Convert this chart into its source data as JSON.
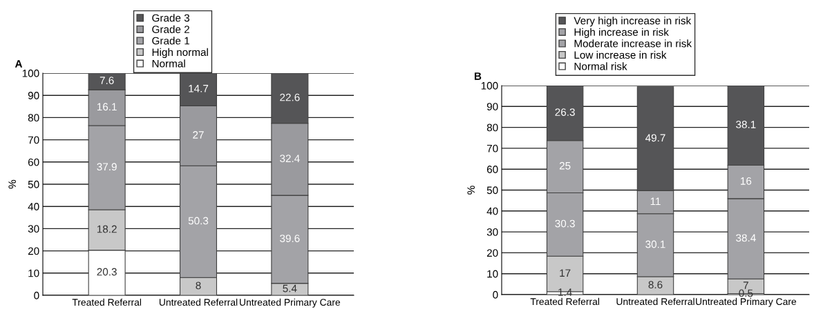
{
  "chart_data": [
    {
      "type": "bar",
      "stacked": true,
      "title": "A",
      "ylabel": "%",
      "categories": [
        "Treated Referral",
        "Untreated Referral",
        "Untreated Primary Care"
      ],
      "ylim": [
        0,
        100
      ],
      "yticks": [
        0,
        10,
        20,
        30,
        40,
        50,
        60,
        70,
        80,
        90,
        100
      ],
      "grid": "y",
      "legend": "top",
      "series": [
        {
          "name": "Normal",
          "color": "#ffffff",
          "values": [
            20.3,
            0,
            0
          ],
          "value_labels": [
            "20.3",
            null,
            null
          ]
        },
        {
          "name": "High normal",
          "color": "#c8c8c8",
          "values": [
            18.2,
            8,
            5.4
          ],
          "value_labels": [
            "18.2",
            "8",
            "5.4"
          ]
        },
        {
          "name": "Grade 1",
          "color": "#a3a3a7",
          "values": [
            37.9,
            50.3,
            39.6
          ],
          "value_labels": [
            "37.9",
            "50.3",
            "39.6"
          ]
        },
        {
          "name": "Grade 2",
          "color": "#9a9a9e",
          "values": [
            16.1,
            27,
            32.4
          ],
          "value_labels": [
            "16.1",
            "27",
            "32.4"
          ]
        },
        {
          "name": "Grade 3",
          "color": "#555557",
          "values": [
            7.6,
            14.7,
            22.6
          ],
          "value_labels": [
            "7.6",
            "14.7",
            "22.6"
          ]
        }
      ]
    },
    {
      "type": "bar",
      "stacked": true,
      "title": "B",
      "ylabel": "%",
      "categories": [
        "Treated Referral",
        "Untreated Referral",
        "Untreated Primary Care"
      ],
      "ylim": [
        0,
        100
      ],
      "yticks": [
        0,
        10,
        20,
        30,
        40,
        50,
        60,
        70,
        80,
        90,
        100
      ],
      "grid": "y",
      "legend": "top",
      "series": [
        {
          "name": "Normal risk",
          "color": "#ffffff",
          "values": [
            1.4,
            null,
            0.5
          ],
          "value_labels": [
            "1.4",
            null,
            "0.5"
          ]
        },
        {
          "name": "Low increase in risk",
          "color": "#c8c8c8",
          "values": [
            17,
            8.6,
            7
          ],
          "value_labels": [
            "17",
            "8.6",
            "7"
          ]
        },
        {
          "name": "Moderate increase in risk",
          "color": "#a3a3a7",
          "values": [
            30.3,
            30.1,
            38.4
          ],
          "value_labels": [
            "30.3",
            "30.1",
            "38.4"
          ]
        },
        {
          "name": "High increase in risk",
          "color": "#a3a3a7",
          "values": [
            25,
            11,
            16
          ],
          "value_labels": [
            "25",
            "11",
            "16"
          ]
        },
        {
          "name": "Very high increase in risk",
          "color": "#555557",
          "values": [
            26.3,
            49.7,
            38.1
          ],
          "value_labels": [
            "26.3",
            "49.7",
            "38.1"
          ]
        }
      ]
    }
  ]
}
